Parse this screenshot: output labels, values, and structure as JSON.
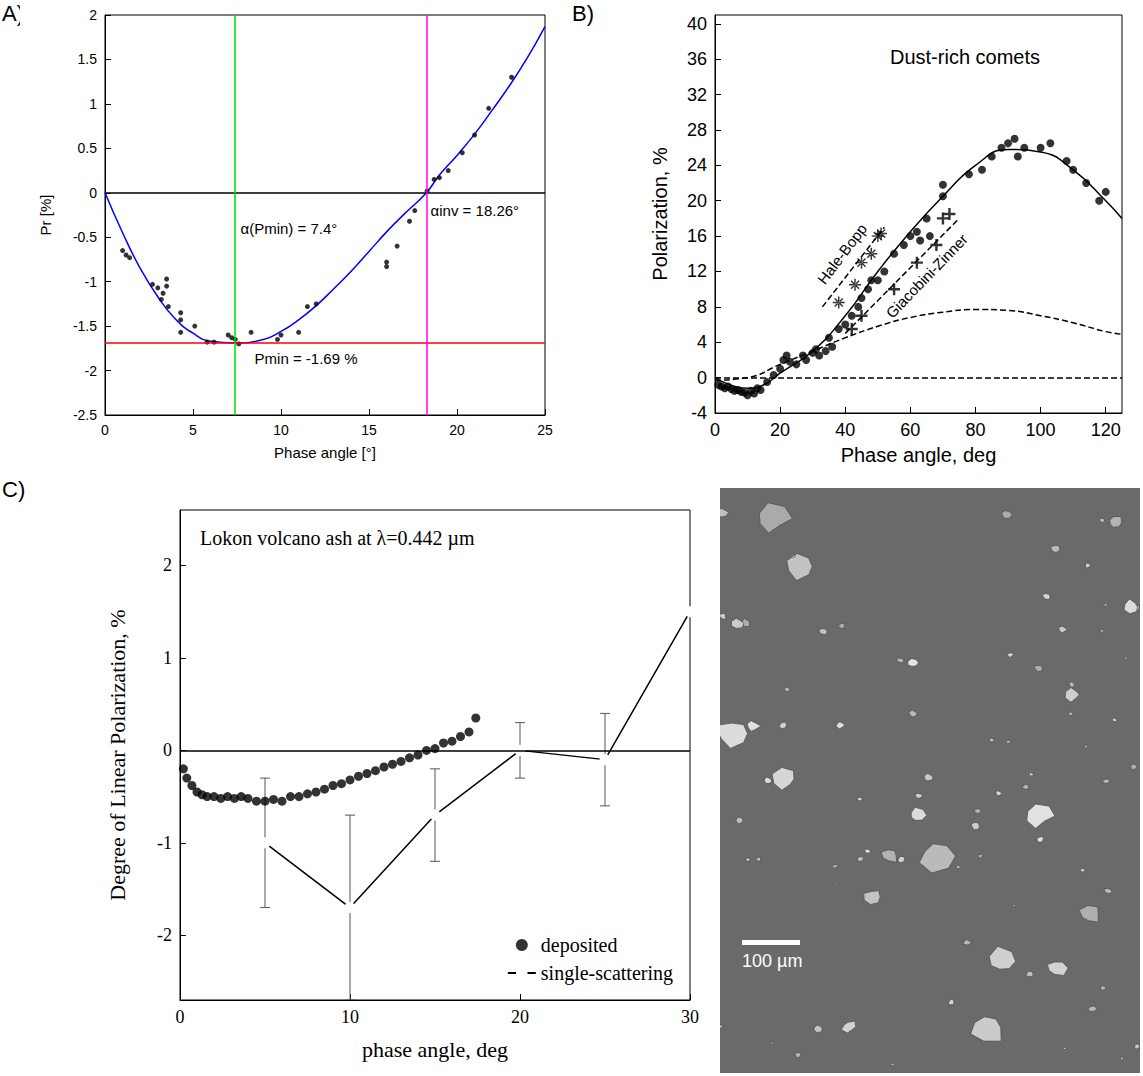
{
  "chart_data": [
    {
      "panel": "A)",
      "type": "scatter",
      "xlabel": "Phase angle [°]",
      "ylabel": "Pr [%]",
      "xlim": [
        0,
        25
      ],
      "xticks": [
        0,
        5,
        10,
        15,
        20,
        25
      ],
      "ylim": [
        -2.5,
        2
      ],
      "yticks": [
        -2.5,
        -2,
        -1.5,
        -1,
        -0.5,
        0,
        0.5,
        1,
        1.5,
        2
      ],
      "grid": false,
      "series": [
        {
          "type": "scatter",
          "color": "#000000",
          "marker": "circle",
          "x": [
            1,
            1.2,
            1.4,
            2.7,
            3,
            3.2,
            3.3,
            3.5,
            3.5,
            3.6,
            4.3,
            4.3,
            4.3,
            5.1,
            5.8,
            6.2,
            7,
            7.2,
            7.4,
            7.6,
            8.3,
            9.8,
            10,
            11,
            11.5,
            12,
            16,
            16,
            16.6,
            17.3,
            17.6,
            18.3,
            18.7,
            19,
            19.5,
            20.3,
            21,
            21.8,
            23.1
          ],
          "values": [
            -0.65,
            -0.7,
            -0.73,
            -1.03,
            -1.07,
            -1.2,
            -1.13,
            -1.05,
            -0.97,
            -1.28,
            -1.35,
            -1.43,
            -1.57,
            -1.5,
            -1.68,
            -1.68,
            -1.6,
            -1.63,
            -1.65,
            -1.7,
            -1.57,
            -1.65,
            -1.6,
            -1.57,
            -1.28,
            -1.25,
            -0.78,
            -0.83,
            -0.6,
            -0.32,
            -0.2,
            0.02,
            0.15,
            0.17,
            0.25,
            0.45,
            0.65,
            0.95,
            1.3
          ]
        },
        {
          "type": "line",
          "color": "#0000ff",
          "x": [
            0,
            1,
            2,
            3,
            4,
            5,
            6,
            7.4,
            9,
            10,
            11,
            12,
            13,
            14,
            15,
            16,
            17,
            18.26,
            19,
            20,
            21,
            22,
            23,
            24,
            25
          ],
          "values": [
            0,
            -0.45,
            -0.85,
            -1.17,
            -1.42,
            -1.58,
            -1.67,
            -1.69,
            -1.65,
            -1.56,
            -1.43,
            -1.27,
            -1.08,
            -0.88,
            -0.66,
            -0.44,
            -0.24,
            0,
            0.2,
            0.42,
            0.66,
            0.93,
            1.21,
            1.52,
            1.87
          ]
        }
      ],
      "reference_lines": [
        {
          "axis": "y",
          "value": 0,
          "color": "#000000",
          "line_style": "solid"
        },
        {
          "axis": "y",
          "value": -1.69,
          "color": "#ff0000",
          "line_style": "solid"
        },
        {
          "axis": "x",
          "value": 7.4,
          "color": "#00e000",
          "line_style": "solid"
        },
        {
          "axis": "x",
          "value": 18.26,
          "color": "#ff00ff",
          "line_style": "solid"
        }
      ],
      "annotations": [
        "α(Pmin) = 7.4°",
        "αinv = 18.26°",
        "Pmin = -1.69 %"
      ]
    },
    {
      "panel": "B)",
      "type": "scatter",
      "title": "Dust-rich comets",
      "xlabel": "Phase angle, deg",
      "ylabel": "Polarization, %",
      "xlim": [
        0,
        125
      ],
      "xticks": [
        0,
        20,
        40,
        60,
        80,
        100,
        120
      ],
      "ylim": [
        -4,
        41
      ],
      "yticks": [
        -4,
        0,
        4,
        8,
        12,
        16,
        20,
        24,
        28,
        32,
        36,
        40
      ],
      "grid": false,
      "series": [
        {
          "type": "scatter",
          "color": "#000000",
          "marker": "circle",
          "x": [
            1,
            2,
            3,
            4,
            5,
            6,
            7,
            8,
            9,
            10,
            11,
            12,
            13,
            14,
            16,
            18,
            20,
            21,
            22,
            23,
            25,
            27,
            28,
            30,
            31,
            32,
            34,
            35,
            36,
            38,
            40,
            42,
            44,
            45,
            47,
            48,
            50,
            52,
            55,
            58,
            60,
            62,
            63,
            65,
            66,
            70,
            70,
            78,
            82,
            85,
            88,
            90,
            92,
            93,
            95,
            100,
            103,
            108,
            110,
            114,
            118,
            120
          ],
          "values": [
            -0.8,
            -1,
            -1.2,
            -1,
            -1.3,
            -1.5,
            -1.4,
            -1.6,
            -1.7,
            -2,
            -1.5,
            -1.8,
            -1.2,
            -1.4,
            -0.5,
            0.3,
            1,
            2,
            2.5,
            1.8,
            1.5,
            2.5,
            2,
            2.8,
            3.2,
            2.5,
            3,
            4.5,
            3.5,
            5.5,
            6,
            7,
            8,
            9,
            10,
            11,
            11,
            12,
            14,
            15,
            16,
            16.5,
            15.5,
            18,
            16,
            20.5,
            21.8,
            23,
            23.5,
            25,
            26,
            26.5,
            27,
            25,
            26,
            26,
            26.5,
            24.5,
            23.5,
            22,
            20,
            21
          ]
        },
        {
          "type": "line",
          "color": "#000000",
          "line_style": "solid",
          "x": [
            0,
            10,
            15,
            20,
            30,
            40,
            50,
            60,
            70,
            80,
            90,
            100,
            110,
            120,
            125
          ],
          "values": [
            0,
            -1.2,
            -0.8,
            0.5,
            3,
            7,
            12,
            16.5,
            20.5,
            24,
            25.8,
            25.5,
            23.5,
            20,
            18
          ]
        },
        {
          "type": "line",
          "color": "#000000",
          "line_style": "dashed",
          "x": [
            0,
            10,
            20,
            30,
            40,
            50,
            60,
            70,
            80,
            90,
            100,
            110,
            120,
            125
          ],
          "values": [
            -0.3,
            0,
            1.5,
            3,
            4.5,
            5.8,
            6.8,
            7.4,
            7.7,
            7.6,
            7,
            6.2,
            5.2,
            4.9
          ]
        },
        {
          "name": "Hale-Bopp",
          "type": "scatter",
          "color": "#000000",
          "marker": "asterisk",
          "x": [
            38,
            43,
            45,
            48,
            50,
            51
          ],
          "values": [
            8.5,
            10.5,
            13,
            14,
            16,
            16.3
          ]
        },
        {
          "type": "line",
          "color": "#000000",
          "line_style": "dashed",
          "x": [
            33,
            52
          ],
          "values": [
            8,
            17
          ]
        },
        {
          "name": "Giacobini-Zinner",
          "type": "scatter",
          "color": "#000000",
          "marker": "plus",
          "x": [
            42,
            45,
            55,
            62,
            68,
            70,
            72
          ],
          "values": [
            5.5,
            7,
            10,
            13,
            15,
            18,
            18.5
          ]
        },
        {
          "type": "line",
          "color": "#000000",
          "line_style": "dashed",
          "x": [
            40,
            75
          ],
          "values": [
            5,
            18
          ]
        }
      ],
      "reference_lines": [
        {
          "axis": "y",
          "value": 0,
          "color": "#000000",
          "line_style": "dashed"
        }
      ]
    },
    {
      "panel": "C)",
      "type": "scatter",
      "title": "Lokon volcano ash at λ=0.442 µm",
      "xlabel": "phase angle, deg",
      "ylabel": "Degree of Linear Polarization, %",
      "xlim": [
        0,
        30
      ],
      "xticks": [
        0,
        10,
        20,
        30
      ],
      "ylim": [
        -2.7,
        2.6
      ],
      "yticks": [
        -2,
        -1,
        0,
        1,
        2
      ],
      "grid": false,
      "legend": "lower right",
      "series": [
        {
          "name": "deposited",
          "type": "scatter",
          "color": "#000000",
          "marker": "circle",
          "x": [
            0.2,
            0.4,
            0.7,
            1,
            1.3,
            1.6,
            2,
            2.4,
            2.8,
            3.2,
            3.6,
            4,
            4.5,
            5,
            5.5,
            6,
            6.5,
            7,
            7.5,
            8,
            8.5,
            9,
            9.5,
            10,
            10.5,
            11,
            11.5,
            12,
            12.5,
            13,
            13.5,
            14,
            14.5,
            15,
            15.5,
            16,
            16.5,
            17,
            17.4
          ],
          "values": [
            -0.2,
            -0.3,
            -0.38,
            -0.45,
            -0.48,
            -0.5,
            -0.5,
            -0.52,
            -0.5,
            -0.52,
            -0.5,
            -0.52,
            -0.55,
            -0.55,
            -0.53,
            -0.55,
            -0.5,
            -0.5,
            -0.47,
            -0.45,
            -0.42,
            -0.38,
            -0.36,
            -0.32,
            -0.28,
            -0.25,
            -0.22,
            -0.18,
            -0.15,
            -0.12,
            -0.08,
            -0.05,
            0,
            0.02,
            0.08,
            0.1,
            0.15,
            0.2,
            0.35
          ]
        },
        {
          "name": "single-scattering",
          "type": "line",
          "color": "#000000",
          "marker": "open_circle",
          "line_style": "solid",
          "x": [
            5,
            10,
            15,
            20,
            25,
            30
          ],
          "values": [
            -1,
            -1.7,
            -0.7,
            0,
            -0.1,
            1.5
          ],
          "error": [
            0.7,
            1,
            0.5,
            0.3,
            0.5,
            null
          ]
        }
      ],
      "reference_lines": [
        {
          "axis": "y",
          "value": 0,
          "color": "#000000",
          "line_style": "solid"
        }
      ]
    }
  ],
  "image": {
    "scale_bar": "100 µm"
  }
}
